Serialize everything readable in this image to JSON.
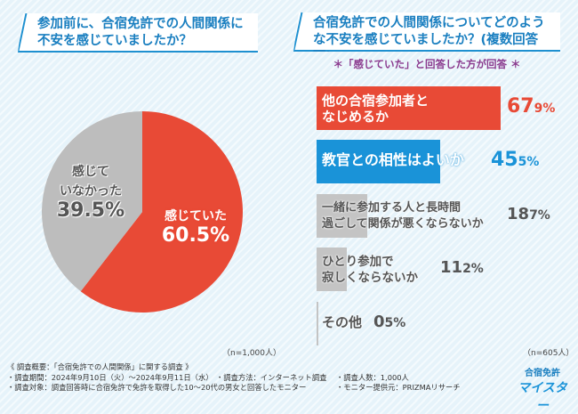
{
  "left": {
    "title": "参加前に、合宿免許での人間関係に不安を感じていましたか？",
    "sample": "（n=1,000人）"
  },
  "right": {
    "title": "合宿免許での人間関係についてどのような不安を感じていましたか？(複数回答可)",
    "note": "＊「感じていた」と回答した方が回答 ＊",
    "sample": "（n=605人）"
  },
  "chart_data": [
    {
      "type": "pie",
      "categories": [
        "感じていた",
        "感じていなかった"
      ],
      "values": [
        60.5,
        39.5
      ],
      "labels": [
        "感じていた",
        "感じて いなかった"
      ],
      "value_labels": [
        "60.5%",
        "39.5%"
      ],
      "colors": [
        "#e84a36",
        "#bdbdbd"
      ],
      "unit": "%"
    },
    {
      "type": "bar",
      "orientation": "horizontal",
      "categories": [
        "他の合宿参加者となじめるか",
        "教官との相性はよいか",
        "一緒に参加する人と長時間過ごして関係が悪くならないか",
        "ひとり参加で寂しくならないか",
        "その他"
      ],
      "values": [
        67.9,
        45.5,
        18.7,
        11.2,
        0.5
      ],
      "value_labels": [
        "67.9%",
        "45.5%",
        "18.7%",
        "11.2%",
        "0.5%"
      ],
      "colors": [
        "#e84a36",
        "#1a93d8",
        "#c4c4c4",
        "#c4c4c4",
        "#c4c4c4"
      ],
      "unit": "%"
    }
  ],
  "footer": {
    "overview": "《 調査概要：「合宿免許での人間関係」に関する調査 》",
    "period": "・調査期間：2024年9月10日（火）～2024年9月11日（水）",
    "method": "・調査方法：インターネット調査",
    "count": "・調査人数：1,000人",
    "target": "・調査対象：調査回答時に合宿免許で免許を取得した10～20代の男女と回答したモニター",
    "provider": "・モニター提供元：PRIZMAリサーチ"
  },
  "logo": {
    "line1": "合宿免許",
    "line2": "マイスター"
  }
}
